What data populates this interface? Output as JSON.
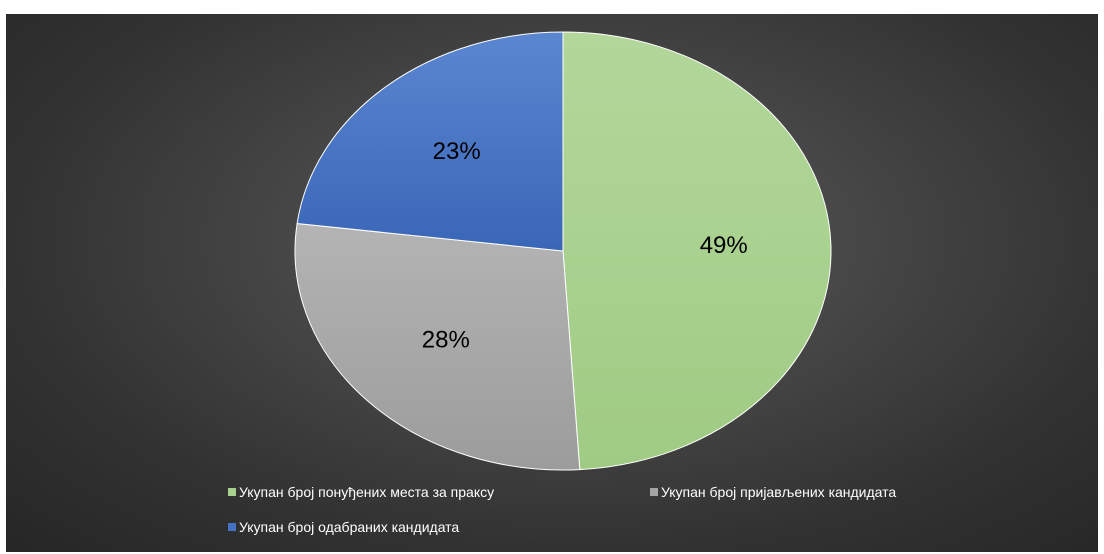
{
  "chart_data": {
    "type": "pie",
    "categories": [
      "Укупан број понуђених места за праксу",
      "Укупан број пријављених кандидата",
      "Укупан број одабраних кандидата"
    ],
    "values": [
      49,
      28,
      23
    ],
    "labels": [
      "49%",
      "28%",
      "23%"
    ],
    "colors": [
      "#a9d18e",
      "#a5a5a5",
      "#4472c4"
    ],
    "title": "",
    "legend_position": "bottom"
  },
  "legend": {
    "items": [
      {
        "label": "Укупан број понуђених места за праксу",
        "color": "#a9d18e"
      },
      {
        "label": "Укупан број пријављених кандидата",
        "color": "#a5a5a5"
      },
      {
        "label": "Укупан број одабраних кандидата",
        "color": "#4472c4"
      }
    ]
  }
}
